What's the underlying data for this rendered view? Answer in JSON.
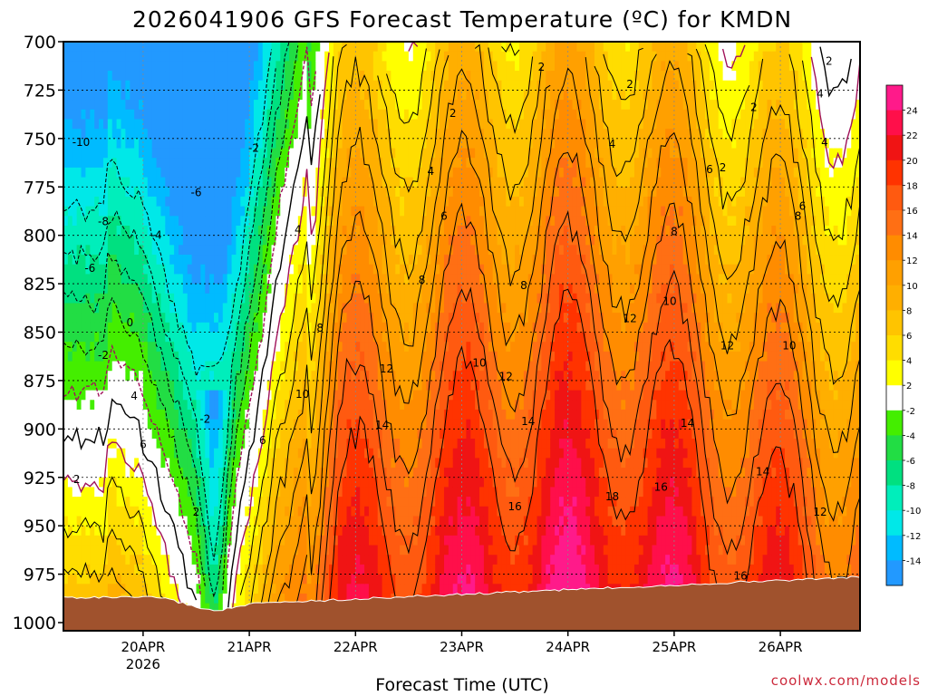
{
  "chart_data": {
    "type": "heatmap",
    "title": "2026041906 GFS Forecast Temperature (ºC) for KMDN",
    "xlabel": "Forecast Time (UTC)",
    "ylabel": "",
    "credit": "coolwx.com/models",
    "y_ticks": [
      "700",
      "725",
      "750",
      "775",
      "800",
      "825",
      "850",
      "875",
      "900",
      "925",
      "950",
      "975",
      "1000"
    ],
    "y_values": [
      700,
      725,
      750,
      775,
      800,
      825,
      850,
      875,
      900,
      925,
      950,
      975,
      1000
    ],
    "ylim": [
      700,
      1005
    ],
    "x_ticks": [
      {
        "label": "20APR",
        "sub": "2026",
        "hour": 18
      },
      {
        "label": "21APR",
        "sub": "",
        "hour": 42
      },
      {
        "label": "22APR",
        "sub": "",
        "hour": 66
      },
      {
        "label": "23APR",
        "sub": "",
        "hour": 90
      },
      {
        "label": "24APR",
        "sub": "",
        "hour": 114
      },
      {
        "label": "25APR",
        "sub": "",
        "hour": 138
      },
      {
        "label": "26APR",
        "sub": "",
        "hour": 162
      }
    ],
    "xlim": [
      0,
      180
    ],
    "colorbar": {
      "labels": [
        "24",
        "22",
        "20",
        "18",
        "16",
        "14",
        "12",
        "10",
        "8",
        "6",
        "4",
        "2",
        "-2",
        "-4",
        "-6",
        "-8",
        "-10",
        "-12",
        "-14"
      ],
      "colors": [
        "#ff1a8a",
        "#ff0f4a",
        "#f01414",
        "#ff3300",
        "#ff5a10",
        "#ff6f14",
        "#ff8c00",
        "#ffa000",
        "#ffaf00",
        "#ffc400",
        "#ffdd00",
        "#ffff00",
        "#ffffff",
        "#44ee00",
        "#22dd44",
        "#00e080",
        "#00eebb",
        "#00e8e8",
        "#00bbff",
        "#2299ff"
      ]
    },
    "contour_labels": [
      {
        "text": "-10",
        "hour": 4,
        "p": 752
      },
      {
        "text": "-8",
        "hour": 9,
        "p": 793
      },
      {
        "text": "-6",
        "hour": 6,
        "p": 817
      },
      {
        "text": "-6",
        "hour": 30,
        "p": 778
      },
      {
        "text": "-4",
        "hour": 21,
        "p": 800
      },
      {
        "text": "0",
        "hour": 15,
        "p": 845
      },
      {
        "text": "-2",
        "hour": 9,
        "p": 862
      },
      {
        "text": "-2",
        "hour": 43,
        "p": 755
      },
      {
        "text": "-2",
        "hour": 32,
        "p": 895
      },
      {
        "text": "2",
        "hour": 3,
        "p": 926
      },
      {
        "text": "4",
        "hour": 16,
        "p": 883
      },
      {
        "text": "6",
        "hour": 18,
        "p": 908
      },
      {
        "text": "2",
        "hour": 30,
        "p": 943
      },
      {
        "text": "4",
        "hour": 53,
        "p": 797
      },
      {
        "text": "6",
        "hour": 45,
        "p": 906
      },
      {
        "text": "8",
        "hour": 58,
        "p": 848
      },
      {
        "text": "10",
        "hour": 54,
        "p": 882
      },
      {
        "text": "12",
        "hour": 73,
        "p": 869
      },
      {
        "text": "14",
        "hour": 72,
        "p": 898
      },
      {
        "text": "2",
        "hour": 108,
        "p": 713
      },
      {
        "text": "2",
        "hour": 88,
        "p": 737
      },
      {
        "text": "2",
        "hour": 128,
        "p": 722
      },
      {
        "text": "4",
        "hour": 83,
        "p": 767
      },
      {
        "text": "6",
        "hour": 86,
        "p": 790
      },
      {
        "text": "8",
        "hour": 81,
        "p": 823
      },
      {
        "text": "10",
        "hour": 94,
        "p": 866
      },
      {
        "text": "12",
        "hour": 100,
        "p": 873
      },
      {
        "text": "14",
        "hour": 105,
        "p": 896
      },
      {
        "text": "16",
        "hour": 102,
        "p": 940
      },
      {
        "text": "18",
        "hour": 124,
        "p": 935
      },
      {
        "text": "16",
        "hour": 135,
        "p": 930
      },
      {
        "text": "14",
        "hour": 141,
        "p": 897
      },
      {
        "text": "12",
        "hour": 128,
        "p": 843
      },
      {
        "text": "10",
        "hour": 137,
        "p": 834
      },
      {
        "text": "8",
        "hour": 104,
        "p": 826
      },
      {
        "text": "4",
        "hour": 124,
        "p": 753
      },
      {
        "text": "6",
        "hour": 146,
        "p": 766
      },
      {
        "text": "8",
        "hour": 138,
        "p": 798
      },
      {
        "text": "12",
        "hour": 150,
        "p": 857
      },
      {
        "text": "10",
        "hour": 164,
        "p": 857
      },
      {
        "text": "14",
        "hour": 158,
        "p": 922
      },
      {
        "text": "12",
        "hour": 171,
        "p": 943
      },
      {
        "text": "16",
        "hour": 153,
        "p": 976
      },
      {
        "text": "4",
        "hour": 172,
        "p": 752
      },
      {
        "text": "2",
        "hour": 149,
        "p": 765
      },
      {
        "text": "6",
        "hour": 167,
        "p": 785
      },
      {
        "text": "8",
        "hour": 166,
        "p": 790
      },
      {
        "text": "2",
        "hour": 173,
        "p": 710
      },
      {
        "text": "4",
        "hour": 171,
        "p": 727
      },
      {
        "text": "2",
        "hour": 156,
        "p": 734
      }
    ],
    "terrain_color": "#a0522d",
    "dry_zone_color": "#ffffff"
  }
}
